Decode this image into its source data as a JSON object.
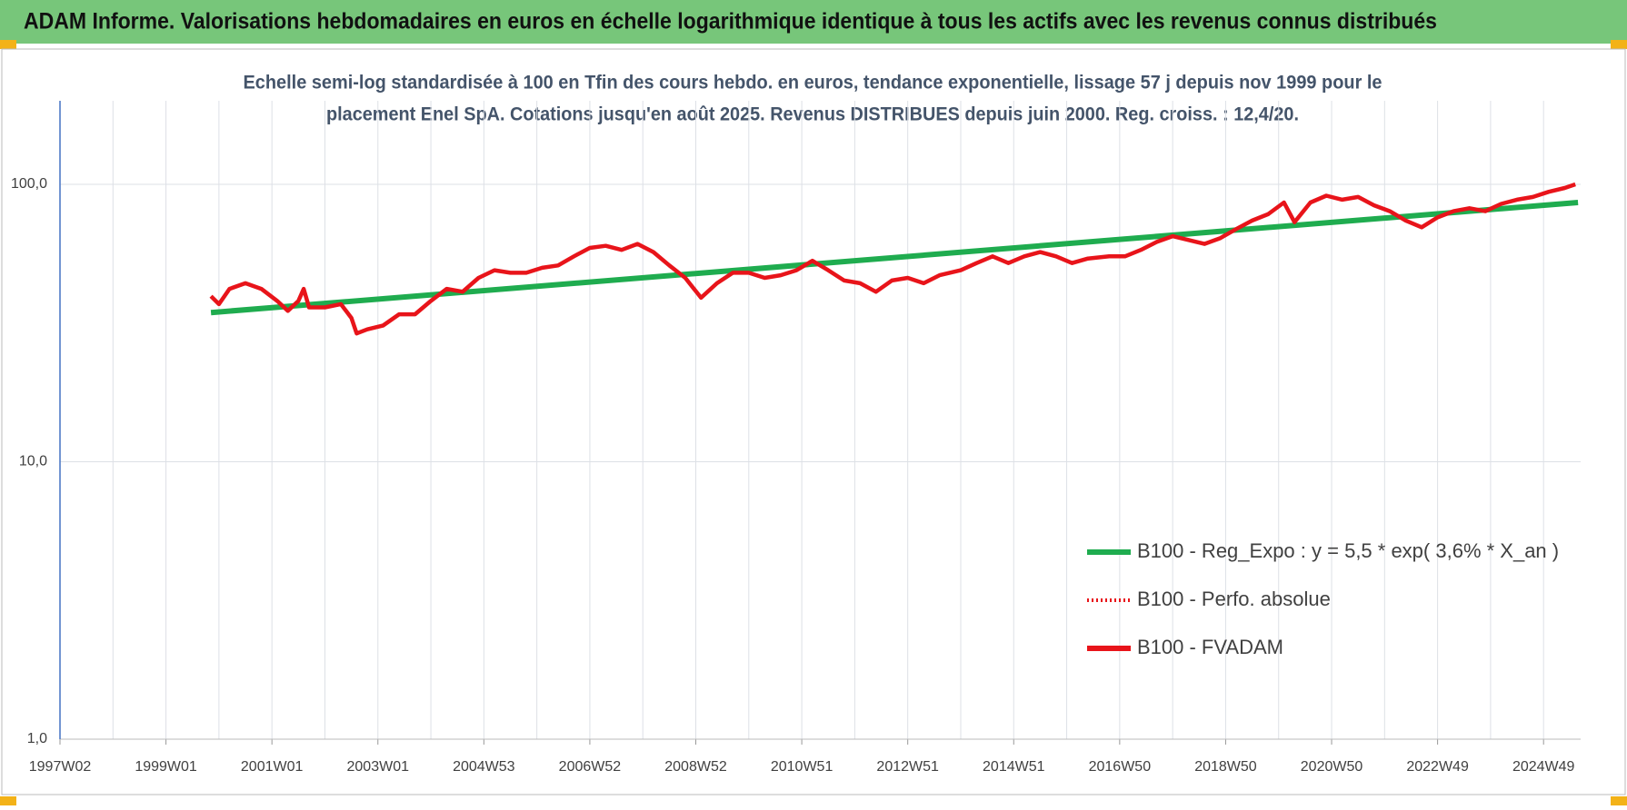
{
  "header": {
    "title": "ADAM Informe. Valorisations hebdomadaires en euros en échelle logarithmique identique à tous les actifs avec les revenus connus distribués"
  },
  "chart_data": {
    "type": "line",
    "title": [
      "Echelle semi-log standardisée à 100 en Tfin des cours hebdo. en euros, tendance exponentielle, lissage 57 j depuis nov 1999 pour le",
      "placement Enel SpA.  Cotations jusqu'en août 2025.  Revenus DISTRIBUES depuis juin 2000.  Reg. croiss. : 12,4/20."
    ],
    "log": true,
    "grid": true,
    "ylim": [
      1,
      200
    ],
    "yticks": [
      {
        "value": 1,
        "label": "1,0"
      },
      {
        "value": 10,
        "label": "10,0"
      },
      {
        "value": 100,
        "label": "100,0"
      }
    ],
    "xlim": [
      1997.0,
      2025.7
    ],
    "xticks": [
      {
        "value": 1997,
        "label": "1997W02"
      },
      {
        "value": 1999,
        "label": "1999W01"
      },
      {
        "value": 2001,
        "label": "2001W01"
      },
      {
        "value": 2003,
        "label": "2003W01"
      },
      {
        "value": 2005,
        "label": "2004W53"
      },
      {
        "value": 2007,
        "label": "2006W52"
      },
      {
        "value": 2009,
        "label": "2008W52"
      },
      {
        "value": 2011,
        "label": "2010W51"
      },
      {
        "value": 2013,
        "label": "2012W51"
      },
      {
        "value": 2015,
        "label": "2014W51"
      },
      {
        "value": 2017,
        "label": "2016W50"
      },
      {
        "value": 2019,
        "label": "2018W50"
      },
      {
        "value": 2021,
        "label": "2020W50"
      },
      {
        "value": 2023,
        "label": "2022W49"
      },
      {
        "value": 2025,
        "label": "2024W49"
      }
    ],
    "series": [
      {
        "name": "B100 - Reg_Expo : y = 5,5 * exp( 3,6% *  X_an )",
        "color": "#1fac4f",
        "style": "solid",
        "x": [
          1999.85,
          2025.65
        ],
        "values": [
          34.5,
          86
        ]
      },
      {
        "name": "B100 - Perfo. absolue",
        "color": "#e8141a",
        "style": "dotted",
        "x": [],
        "values": []
      },
      {
        "name": "B100 - FVADAM",
        "color": "#e8141a",
        "style": "solid",
        "x": [
          1999.85,
          2000.0,
          2000.2,
          2000.5,
          2000.8,
          2001.1,
          2001.3,
          2001.5,
          2001.6,
          2001.7,
          2002.0,
          2002.3,
          2002.5,
          2002.6,
          2002.8,
          2003.1,
          2003.4,
          2003.7,
          2004.0,
          2004.3,
          2004.6,
          2004.9,
          2005.2,
          2005.5,
          2005.8,
          2006.1,
          2006.4,
          2006.7,
          2007.0,
          2007.3,
          2007.6,
          2007.9,
          2008.2,
          2008.5,
          2008.8,
          2009.1,
          2009.4,
          2009.7,
          2010.0,
          2010.3,
          2010.6,
          2010.9,
          2011.2,
          2011.5,
          2011.8,
          2012.1,
          2012.4,
          2012.7,
          2013.0,
          2013.3,
          2013.6,
          2014.0,
          2014.3,
          2014.6,
          2014.9,
          2015.2,
          2015.5,
          2015.8,
          2016.1,
          2016.4,
          2016.8,
          2017.1,
          2017.4,
          2017.7,
          2018.0,
          2018.3,
          2018.6,
          2018.9,
          2019.2,
          2019.5,
          2019.8,
          2020.1,
          2020.3,
          2020.6,
          2020.9,
          2021.2,
          2021.5,
          2021.8,
          2022.1,
          2022.4,
          2022.7,
          2023.0,
          2023.3,
          2023.6,
          2023.9,
          2024.2,
          2024.5,
          2024.8,
          2025.1,
          2025.4,
          2025.6
        ],
        "values": [
          39.5,
          37,
          42,
          44,
          42,
          38,
          35,
          38,
          42,
          36,
          36,
          37,
          33,
          29,
          30,
          31,
          34,
          34,
          38,
          42,
          41,
          46,
          49,
          48,
          48,
          50,
          51,
          55,
          59,
          60,
          58,
          61,
          57,
          51,
          46,
          39,
          44,
          48,
          48,
          46,
          47,
          49,
          53,
          49,
          45,
          44,
          41,
          45,
          46,
          44,
          47,
          49,
          52,
          55,
          52,
          55,
          57,
          55,
          52,
          54,
          55,
          55,
          58,
          62,
          65,
          63,
          61,
          64,
          69,
          74,
          78,
          86,
          73,
          86,
          91,
          88,
          90,
          84,
          80,
          74,
          70,
          76,
          80,
          82,
          80,
          85,
          88,
          90,
          94,
          97,
          100
        ]
      }
    ]
  }
}
